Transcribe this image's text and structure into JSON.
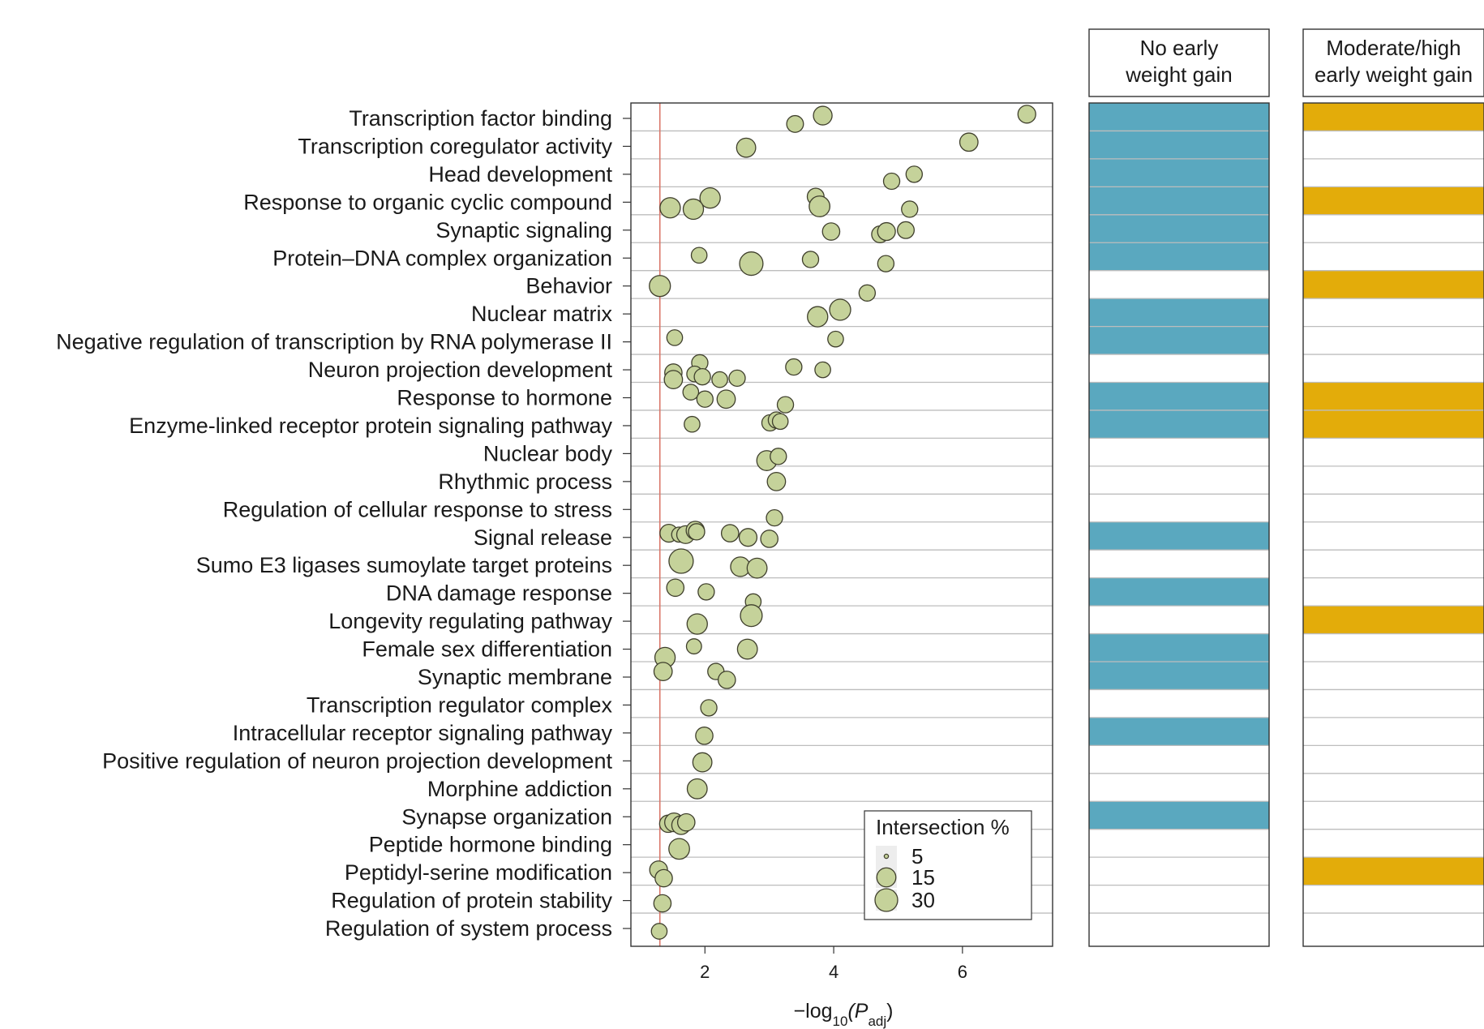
{
  "chart_data": {
    "type": "scatter",
    "xlabel": {
      "prefix": "−log",
      "sub": "10",
      "open": "(P",
      "sub2": "adj",
      "close": ")"
    },
    "xticks": [
      2,
      4,
      6
    ],
    "xlim": [
      0.85,
      7.4
    ],
    "threshold_x": 1.3,
    "categories": [
      "Transcription factor binding",
      "Transcription coregulator activity",
      "Head development",
      "Response to organic cyclic compound",
      "Synaptic signaling",
      "Protein–DNA complex organization",
      "Behavior",
      "Nuclear matrix",
      "Negative regulation of transcription by RNA polymerase II",
      "Neuron projection development",
      "Response to hormone",
      "Enzyme-linked receptor protein signaling pathway",
      "Nuclear body",
      "Rhythmic process",
      "Regulation of cellular response to stress",
      "Signal release",
      "Sumo E3 ligases sumoylate target proteins",
      "DNA damage response",
      "Longevity regulating pathway",
      "Female sex differentiation",
      "Synaptic membrane",
      "Transcription regulator complex",
      "Intracellular receptor signaling pathway",
      "Positive regulation of neuron projection development",
      "Morphine addiction",
      "Synapse organization",
      "Peptide hormone binding",
      "Peptidyl-serine modification",
      "Regulation of protein stability",
      "Regulation of system process"
    ],
    "points": [
      {
        "row": 0,
        "x": 3.4,
        "dy": 0.2,
        "size": 10
      },
      {
        "row": 0,
        "x": 3.83,
        "dy": -0.1,
        "size": 14
      },
      {
        "row": 0,
        "x": 7.0,
        "dy": -0.15,
        "size": 12
      },
      {
        "row": 1,
        "x": 2.64,
        "dy": 0.05,
        "size": 15
      },
      {
        "row": 1,
        "x": 6.1,
        "dy": -0.15,
        "size": 13
      },
      {
        "row": 2,
        "x": 4.9,
        "dy": 0.25,
        "size": 9
      },
      {
        "row": 2,
        "x": 5.25,
        "dy": 0.0,
        "size": 9
      },
      {
        "row": 3,
        "x": 2.08,
        "dy": -0.15,
        "size": 18
      },
      {
        "row": 3,
        "x": 3.72,
        "dy": -0.2,
        "size": 10
      },
      {
        "row": 3,
        "x": 3.78,
        "dy": 0.15,
        "size": 19
      },
      {
        "row": 3,
        "x": 5.18,
        "dy": 0.25,
        "size": 9
      },
      {
        "row": 3,
        "x": 1.46,
        "dy": 0.2,
        "size": 18
      },
      {
        "row": 3,
        "x": 1.82,
        "dy": 0.25,
        "size": 18
      },
      {
        "row": 4,
        "x": 3.96,
        "dy": 0.05,
        "size": 11
      },
      {
        "row": 4,
        "x": 4.72,
        "dy": 0.15,
        "size": 10
      },
      {
        "row": 4,
        "x": 4.82,
        "dy": 0.05,
        "size": 12
      },
      {
        "row": 4,
        "x": 5.12,
        "dy": 0.0,
        "size": 10
      },
      {
        "row": 5,
        "x": 1.91,
        "dy": -0.1,
        "size": 8
      },
      {
        "row": 5,
        "x": 2.72,
        "dy": 0.2,
        "size": 27
      },
      {
        "row": 5,
        "x": 3.64,
        "dy": 0.05,
        "size": 9
      },
      {
        "row": 5,
        "x": 4.81,
        "dy": 0.2,
        "size": 9
      },
      {
        "row": 6,
        "x": 1.3,
        "dy": 0.0,
        "size": 20
      },
      {
        "row": 6,
        "x": 4.52,
        "dy": 0.25,
        "size": 9
      },
      {
        "row": 7,
        "x": 4.1,
        "dy": -0.15,
        "size": 20
      },
      {
        "row": 7,
        "x": 3.75,
        "dy": 0.1,
        "size": 18
      },
      {
        "row": 8,
        "x": 1.53,
        "dy": -0.15,
        "size": 8
      },
      {
        "row": 8,
        "x": 4.03,
        "dy": -0.1,
        "size": 8
      },
      {
        "row": 9,
        "x": 1.92,
        "dy": -0.25,
        "size": 9
      },
      {
        "row": 9,
        "x": 1.84,
        "dy": 0.15,
        "size": 8
      },
      {
        "row": 9,
        "x": 1.96,
        "dy": 0.25,
        "size": 9
      },
      {
        "row": 9,
        "x": 1.51,
        "dy": 0.1,
        "size": 11
      },
      {
        "row": 9,
        "x": 1.51,
        "dy": 0.35,
        "size": 13
      },
      {
        "row": 9,
        "x": 2.23,
        "dy": 0.35,
        "size": 8
      },
      {
        "row": 9,
        "x": 2.5,
        "dy": 0.3,
        "size": 9
      },
      {
        "row": 9,
        "x": 3.38,
        "dy": -0.1,
        "size": 9
      },
      {
        "row": 9,
        "x": 3.83,
        "dy": 0.0,
        "size": 8
      },
      {
        "row": 10,
        "x": 1.78,
        "dy": -0.2,
        "size": 8
      },
      {
        "row": 10,
        "x": 2.0,
        "dy": 0.05,
        "size": 9
      },
      {
        "row": 10,
        "x": 2.33,
        "dy": 0.05,
        "size": 13
      },
      {
        "row": 10,
        "x": 3.25,
        "dy": 0.25,
        "size": 9
      },
      {
        "row": 11,
        "x": 1.8,
        "dy": -0.05,
        "size": 8
      },
      {
        "row": 11,
        "x": 3.01,
        "dy": -0.1,
        "size": 9
      },
      {
        "row": 11,
        "x": 3.11,
        "dy": -0.2,
        "size": 9
      },
      {
        "row": 11,
        "x": 3.17,
        "dy": -0.15,
        "size": 8
      },
      {
        "row": 12,
        "x": 2.96,
        "dy": 0.25,
        "size": 17
      },
      {
        "row": 12,
        "x": 3.14,
        "dy": 0.1,
        "size": 9
      },
      {
        "row": 13,
        "x": 3.11,
        "dy": 0.0,
        "size": 13
      },
      {
        "row": 14,
        "x": 3.08,
        "dy": 0.3,
        "size": 9
      },
      {
        "row": 15,
        "x": 1.44,
        "dy": -0.15,
        "size": 12
      },
      {
        "row": 15,
        "x": 1.6,
        "dy": -0.1,
        "size": 7
      },
      {
        "row": 15,
        "x": 1.7,
        "dy": -0.1,
        "size": 12
      },
      {
        "row": 15,
        "x": 1.85,
        "dy": -0.25,
        "size": 13
      },
      {
        "row": 15,
        "x": 1.87,
        "dy": -0.2,
        "size": 9
      },
      {
        "row": 15,
        "x": 2.39,
        "dy": -0.15,
        "size": 11
      },
      {
        "row": 15,
        "x": 2.67,
        "dy": 0.0,
        "size": 12
      },
      {
        "row": 15,
        "x": 3.0,
        "dy": 0.05,
        "size": 11
      },
      {
        "row": 16,
        "x": 1.63,
        "dy": -0.15,
        "size": 30
      },
      {
        "row": 16,
        "x": 2.55,
        "dy": 0.05,
        "size": 16
      },
      {
        "row": 16,
        "x": 2.81,
        "dy": 0.1,
        "size": 17
      },
      {
        "row": 17,
        "x": 1.54,
        "dy": -0.2,
        "size": 11
      },
      {
        "row": 17,
        "x": 2.02,
        "dy": -0.05,
        "size": 9
      },
      {
        "row": 17,
        "x": 2.75,
        "dy": 0.3,
        "size": 8
      },
      {
        "row": 18,
        "x": 2.72,
        "dy": -0.2,
        "size": 22
      },
      {
        "row": 18,
        "x": 1.88,
        "dy": 0.1,
        "size": 18
      },
      {
        "row": 19,
        "x": 1.83,
        "dy": -0.1,
        "size": 7
      },
      {
        "row": 19,
        "x": 2.66,
        "dy": 0.0,
        "size": 17
      },
      {
        "row": 19,
        "x": 1.38,
        "dy": 0.3,
        "size": 18
      },
      {
        "row": 20,
        "x": 1.35,
        "dy": -0.2,
        "size": 13
      },
      {
        "row": 20,
        "x": 2.17,
        "dy": -0.2,
        "size": 9
      },
      {
        "row": 20,
        "x": 2.34,
        "dy": 0.1,
        "size": 11
      },
      {
        "row": 21,
        "x": 2.06,
        "dy": 0.1,
        "size": 9
      },
      {
        "row": 22,
        "x": 1.99,
        "dy": 0.1,
        "size": 11
      },
      {
        "row": 23,
        "x": 1.96,
        "dy": 0.05,
        "size": 15
      },
      {
        "row": 24,
        "x": 1.88,
        "dy": 0.0,
        "size": 17
      },
      {
        "row": 25,
        "x": 1.43,
        "dy": 0.25,
        "size": 11
      },
      {
        "row": 25,
        "x": 1.52,
        "dy": 0.2,
        "size": 14
      },
      {
        "row": 25,
        "x": 1.63,
        "dy": 0.3,
        "size": 14
      },
      {
        "row": 25,
        "x": 1.71,
        "dy": 0.2,
        "size": 11
      },
      {
        "row": 26,
        "x": 1.6,
        "dy": 0.15,
        "size": 19
      },
      {
        "row": 27,
        "x": 1.28,
        "dy": -0.1,
        "size": 12
      },
      {
        "row": 27,
        "x": 1.36,
        "dy": 0.2,
        "size": 11
      },
      {
        "row": 28,
        "x": 1.34,
        "dy": 0.1,
        "size": 11
      },
      {
        "row": 29,
        "x": 1.29,
        "dy": 0.1,
        "size": 8
      }
    ],
    "legend": {
      "title": "Intersection %",
      "entries": [
        {
          "label": "5",
          "size": 5
        },
        {
          "label": "15",
          "size": 15
        },
        {
          "label": "30",
          "size": 30
        }
      ]
    },
    "groups": [
      {
        "header_line1": "No early",
        "header_line2": "weight gain",
        "color": "#5aa8bf",
        "flags": [
          1,
          1,
          1,
          1,
          1,
          1,
          0,
          1,
          1,
          0,
          1,
          1,
          0,
          0,
          0,
          1,
          0,
          1,
          0,
          1,
          1,
          0,
          1,
          0,
          0,
          1,
          0,
          0,
          0,
          0
        ]
      },
      {
        "header_line1": "Moderate/high",
        "header_line2": "early weight gain",
        "color": "#e3ac0a",
        "flags": [
          1,
          0,
          0,
          1,
          0,
          0,
          1,
          0,
          0,
          0,
          1,
          1,
          0,
          0,
          0,
          0,
          0,
          0,
          1,
          0,
          0,
          0,
          0,
          0,
          0,
          0,
          0,
          1,
          0,
          0
        ]
      }
    ],
    "marker_fill": "#c5d29a",
    "marker_stroke": "#3f3f2c",
    "threshold_color": "#d9776a",
    "grid_color": "#bdbdbd"
  }
}
